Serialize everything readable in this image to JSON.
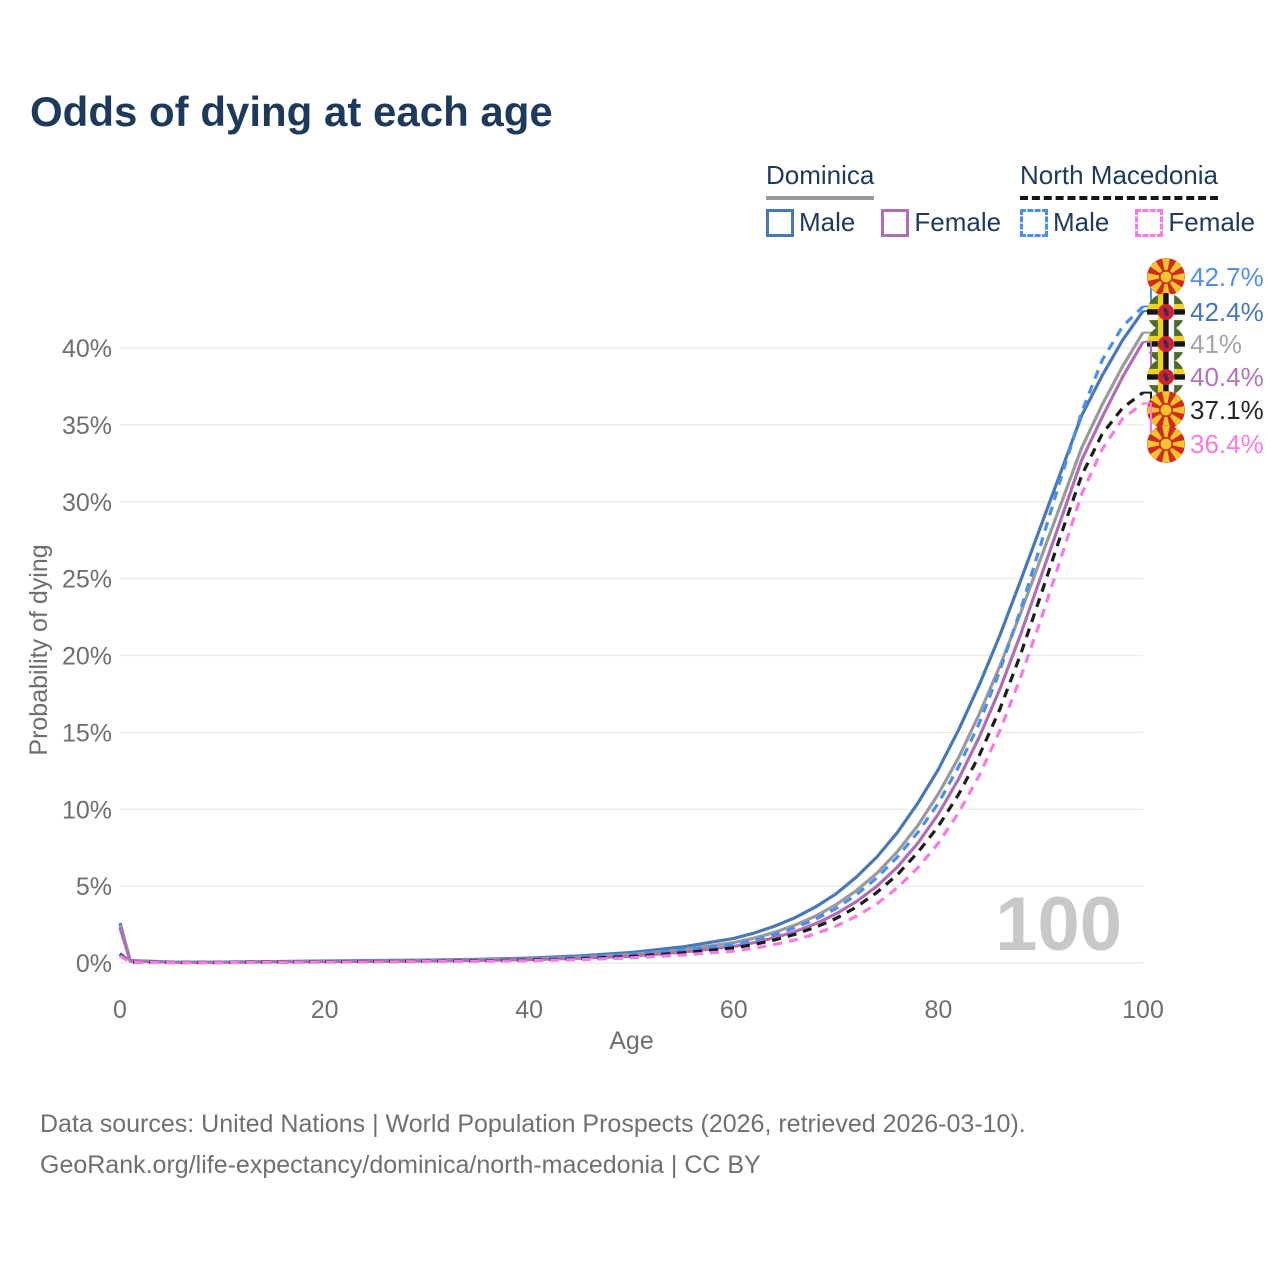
{
  "title": "Odds of dying at each age",
  "legend": {
    "position": "top-right",
    "groups": [
      {
        "name": "Dominica",
        "line_style": "solid",
        "line_color": "#9a9a9a",
        "items": [
          {
            "label": "Male",
            "color": "#4878b8",
            "dashed": false
          },
          {
            "label": "Female",
            "color": "#b06fb5",
            "dashed": false
          }
        ]
      },
      {
        "name": "North Macedonia",
        "line_style": "dashed",
        "line_color": "#161616",
        "items": [
          {
            "label": "Male",
            "color": "#4b8ef2",
            "dashed": true
          },
          {
            "label": "Female",
            "color": "#fb79e3",
            "dashed": true
          }
        ]
      }
    ]
  },
  "chart_data": {
    "type": "line",
    "title": "Odds of dying at each age",
    "xlabel": "Age",
    "ylabel": "Probability of dying",
    "xlim": [
      0,
      100
    ],
    "ylim_percent": [
      0,
      44
    ],
    "xticks": [
      0,
      20,
      40,
      60,
      80,
      100
    ],
    "ytick_step_percent": 5,
    "ytick_labels": [
      "0%",
      "5%",
      "10%",
      "15%",
      "20%",
      "25%",
      "30%",
      "35%",
      "40%"
    ],
    "grid": "horizontal",
    "hover_age_watermark": "100",
    "ages": [
      0,
      1,
      5,
      10,
      15,
      20,
      25,
      30,
      35,
      40,
      45,
      50,
      55,
      60,
      62,
      64,
      66,
      68,
      70,
      72,
      74,
      76,
      78,
      80,
      82,
      84,
      86,
      88,
      90,
      92,
      94,
      96,
      98,
      100
    ],
    "series": [
      {
        "id": "dominica-male",
        "name": "Dominica Male",
        "country": "Dominica",
        "sex": "male",
        "color": "#4878b8",
        "dashed": false,
        "end_value": 42.4,
        "end_label": "42.4%",
        "label_color": "#4878b8",
        "values": [
          2.6,
          0.16,
          0.06,
          0.06,
          0.09,
          0.13,
          0.16,
          0.19,
          0.24,
          0.32,
          0.46,
          0.68,
          1.05,
          1.6,
          1.95,
          2.4,
          2.95,
          3.65,
          4.5,
          5.6,
          6.9,
          8.5,
          10.4,
          12.6,
          15.2,
          18.1,
          21.3,
          24.8,
          28.4,
          32.0,
          35.6,
          38.2,
          40.5,
          42.4
        ]
      },
      {
        "id": "dominica-both",
        "name": "Dominica",
        "country": "Dominica",
        "sex": "both",
        "color": "#9a9a9a",
        "dashed": false,
        "end_value": 41.0,
        "end_label": "41%",
        "label_color": "#a5a5a5",
        "values": [
          2.45,
          0.14,
          0.05,
          0.05,
          0.08,
          0.11,
          0.13,
          0.16,
          0.2,
          0.27,
          0.38,
          0.56,
          0.86,
          1.33,
          1.62,
          2.0,
          2.47,
          3.05,
          3.8,
          4.72,
          5.85,
          7.25,
          8.95,
          11.0,
          13.4,
          16.2,
          19.3,
          22.7,
          26.3,
          29.9,
          33.5,
          36.3,
          38.8,
          41.0
        ]
      },
      {
        "id": "dominica-female",
        "name": "Dominica Female",
        "country": "Dominica",
        "sex": "female",
        "color": "#b06fb5",
        "dashed": false,
        "end_value": 40.4,
        "end_label": "40.4%",
        "label_color": "#b573bd",
        "values": [
          2.3,
          0.12,
          0.05,
          0.05,
          0.07,
          0.09,
          0.11,
          0.13,
          0.17,
          0.22,
          0.31,
          0.45,
          0.7,
          1.08,
          1.33,
          1.65,
          2.05,
          2.55,
          3.2,
          4.0,
          5.0,
          6.25,
          7.8,
          9.7,
          12.0,
          14.7,
          17.8,
          21.3,
          25.1,
          28.9,
          32.7,
          35.5,
          38.1,
          40.4
        ]
      },
      {
        "id": "north-macedonia-male",
        "name": "North Macedonia Male",
        "country": "North Macedonia",
        "sex": "male",
        "color": "#4b8ef2",
        "dashed": true,
        "end_value": 42.7,
        "end_label": "42.7%",
        "label_color": "#4e90ee",
        "values": [
          0.62,
          0.06,
          0.03,
          0.03,
          0.06,
          0.09,
          0.11,
          0.13,
          0.17,
          0.24,
          0.36,
          0.55,
          0.85,
          1.2,
          1.48,
          1.85,
          2.3,
          2.85,
          3.55,
          4.45,
          5.55,
          6.9,
          8.5,
          10.4,
          12.8,
          15.6,
          19.0,
          22.9,
          27.2,
          31.6,
          35.8,
          39.2,
          41.4,
          42.7
        ]
      },
      {
        "id": "north-macedonia-both",
        "name": "North Macedonia",
        "country": "North Macedonia",
        "sex": "both",
        "color": "#1c1c1c",
        "dashed": true,
        "end_value": 37.1,
        "end_label": "37.1%",
        "label_color": "#262626",
        "values": [
          0.55,
          0.05,
          0.03,
          0.03,
          0.05,
          0.08,
          0.09,
          0.11,
          0.14,
          0.19,
          0.28,
          0.43,
          0.66,
          0.98,
          1.2,
          1.5,
          1.87,
          2.33,
          2.9,
          3.65,
          4.6,
          5.75,
          7.2,
          8.9,
          11.0,
          13.5,
          16.5,
          20.0,
          23.9,
          27.9,
          31.7,
          34.4,
          36.1,
          37.1
        ]
      },
      {
        "id": "north-macedonia-female",
        "name": "North Macedonia Female",
        "country": "North Macedonia",
        "sex": "female",
        "color": "#fb79e3",
        "dashed": true,
        "end_value": 36.4,
        "end_label": "36.4%",
        "label_color": "#fb79e3",
        "values": [
          0.48,
          0.05,
          0.02,
          0.02,
          0.04,
          0.06,
          0.07,
          0.09,
          0.11,
          0.15,
          0.22,
          0.34,
          0.52,
          0.78,
          0.96,
          1.2,
          1.5,
          1.9,
          2.4,
          3.05,
          3.85,
          4.9,
          6.2,
          7.8,
          9.8,
          12.2,
          15.1,
          18.5,
          22.3,
          26.4,
          30.5,
          33.4,
          35.4,
          36.4
        ]
      }
    ],
    "flag_colors": {
      "north_macedonia": {
        "red": "#d22a1e",
        "yellow": "#f8c52e"
      },
      "dominica": {
        "green": "#4d6d2d",
        "yellow": "#f1d220",
        "black": "#141414",
        "white": "#f7f7f7",
        "red": "#cf2030",
        "parrot": "#3d2b57"
      }
    }
  },
  "footer": {
    "line1": "Data sources: United Nations | World Population Prospects (2026, retrieved 2026-03-10).",
    "line2": "GeoRank.org/life-expectancy/dominica/north-macedonia | CC BY"
  }
}
